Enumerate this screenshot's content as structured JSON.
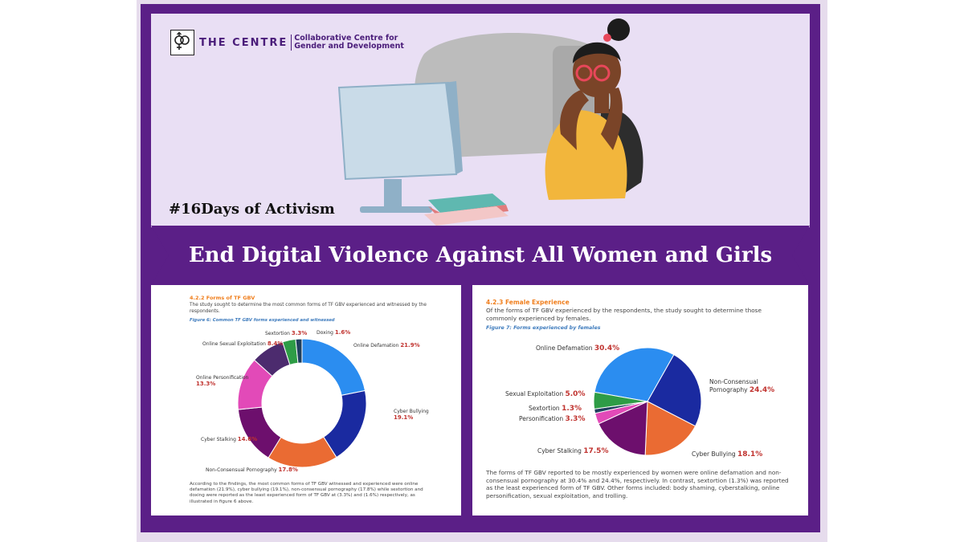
{
  "header": {
    "logo_name": "THE CENTRE",
    "logo_sub_1": "Collaborative Centre for",
    "logo_sub_2": "Gender and Development",
    "hashtag": "#16Days of Activism",
    "banner": "End Digital Violence Against All Women and Girls"
  },
  "colors": {
    "frame_purple": "#5b1f87",
    "panel_lavender": "#e9dff4",
    "accent_orange": "#f07f1e",
    "value_red": "#c0332f"
  },
  "left_doc": {
    "section": "4.2.2 Forms of TF GBV",
    "intro": "The study sought to determine the most common forms of TF GBV experienced and witnessed by the respondents.",
    "caption": "Figure 6: Common TF GBV forms experienced and witnessed",
    "summary": "According to the findings, the most common forms of TF GBV witnessed and experienced were online defamation (21.9%), cyber bullying (19.1%), non-consensual pornography (17.8%) while sextortion and doxing were reported as the least experienced form of TF GBV at (3.3%) and (1.6%) respectively, as illustrated in figure 6 above."
  },
  "right_doc": {
    "section": "4.2.3 Female Experience",
    "intro": "Of the forms of TF GBV experienced by the respondents, the study sought to determine those commonly experienced by females.",
    "caption": "Figure 7: Forms experienced by females",
    "summary": "The forms of TF GBV reported to be mostly experienced by women were online defamation and non-consensual pornography at 30.4% and 24.4%, respectively. In contrast, sextortion (1.3%) was reported as the least experienced form of TF GBV. Other forms included: body shaming, cyberstalking, online personification, sexual exploitation, and trolling."
  },
  "chart_data": [
    {
      "type": "pie",
      "variant": "donut",
      "categories": [
        "Online Defamation",
        "Cyber Bullying",
        "Non-Consensual Pornography",
        "Cyber Stalking",
        "Online Personification",
        "Online Sexual Exploitation",
        "Sextortion",
        "Doxing"
      ],
      "values": [
        21.9,
        19.1,
        17.8,
        14.6,
        13.3,
        8.4,
        3.3,
        1.6
      ],
      "value_labels": [
        "21.9%",
        "19.1%",
        "17.8%",
        "14.6%",
        "13.3%",
        "8.4%",
        "3.3%",
        "1.6%"
      ],
      "colors": [
        "#2b8df0",
        "#1a2aa0",
        "#ea6b33",
        "#6d0f6d",
        "#e24ab8",
        "#4c2b6e",
        "#2e9c46",
        "#1f3f5e"
      ],
      "start_angle_deg": 0,
      "direction": "clockwise"
    },
    {
      "type": "pie",
      "categories": [
        "Online Defamation",
        "Non-Consensual Pornography",
        "Cyber Bullying",
        "Cyber Stalking",
        "Personification",
        "Sextortion",
        "Sexual Exploitation"
      ],
      "label_lines": [
        [
          "Online Defamation"
        ],
        [
          "Non-Consensual",
          "Pornography"
        ],
        [
          "Cyber Bullying"
        ],
        [
          "Cyber Stalking"
        ],
        [
          "Personification"
        ],
        [
          "Sextortion"
        ],
        [
          "Sexual Exploitation"
        ]
      ],
      "values": [
        30.4,
        24.4,
        18.1,
        17.5,
        3.3,
        1.3,
        5.0
      ],
      "value_labels": [
        "30.4%",
        "24.4%",
        "18.1%",
        "17.5%",
        "3.3%",
        "1.3%",
        "5.0%"
      ],
      "colors": [
        "#2b8df0",
        "#1a2aa0",
        "#ea6b33",
        "#6d0f6d",
        "#e24ab8",
        "#1f3f5e",
        "#2e9c46"
      ],
      "start_angle_deg": 280,
      "direction": "clockwise"
    }
  ]
}
